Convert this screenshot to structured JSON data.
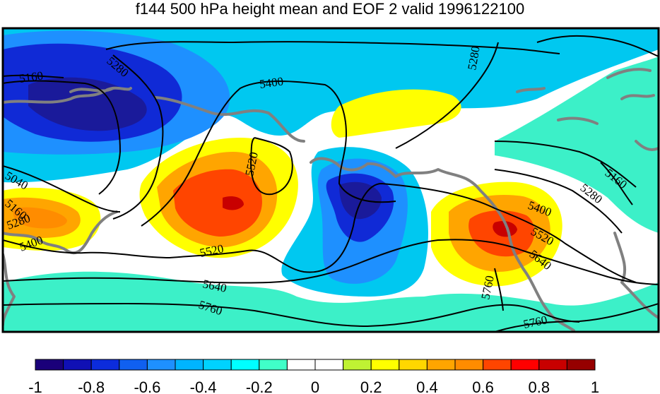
{
  "title": "f144 500 hPa height mean and EOF 2 valid 1996122100",
  "contour_labels": [
    "5160",
    "5280",
    "5400",
    "5280",
    "5520",
    "5040",
    "5160",
    "5280",
    "5400",
    "5520",
    "5640",
    "5760",
    "5160",
    "5280",
    "5400",
    "5520",
    "5640",
    "5760",
    "5760"
  ],
  "colorbar": {
    "colors": [
      "#1a007a",
      "#1010b4",
      "#0c2cdc",
      "#1060f0",
      "#1e90ff",
      "#00b4ff",
      "#00d2ff",
      "#00ffff",
      "#40ffc8",
      "#ffffff",
      "#ffffff",
      "#bff233",
      "#ffff00",
      "#ffd700",
      "#ffa500",
      "#ff8c00",
      "#ff4500",
      "#ff0000",
      "#c80000",
      "#960000"
    ],
    "tick_labels": [
      "-1",
      "-0.8",
      "-0.6",
      "-0.4",
      "-0.2",
      "0",
      "0.2",
      "0.4",
      "0.6",
      "0.8",
      "1"
    ]
  },
  "colors": {
    "coast": "#808080",
    "contour": "#000000",
    "neutral": "#ffffff",
    "cyan": "#00c8f0",
    "teal": "#3cf0c8",
    "blue": "#1e90ff",
    "darkblue": "#102ad6",
    "navy": "#1a1a9a",
    "yellow": "#ffff00",
    "orange": "#ffa500",
    "red": "#ff4500",
    "darkred": "#c80000"
  }
}
